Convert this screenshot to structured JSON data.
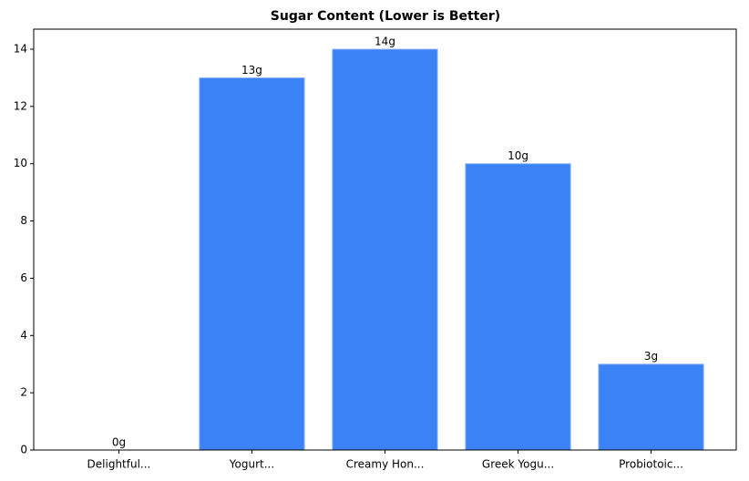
{
  "chart_data": {
    "type": "bar",
    "title": "Sugar Content (Lower is Better)",
    "categories": [
      "Delightful...",
      "Yogurt...",
      "Creamy Hon...",
      "Greek Yogu...",
      "Probiotoic..."
    ],
    "values": [
      0,
      13,
      14,
      10,
      3
    ],
    "value_labels": [
      "0g",
      "13g",
      "14g",
      "10g",
      "3g"
    ],
    "color": "#3b82f6",
    "ylim": [
      0,
      14.7
    ],
    "yticks": [
      0,
      2,
      4,
      6,
      8,
      10,
      12,
      14
    ],
    "grid": false
  }
}
